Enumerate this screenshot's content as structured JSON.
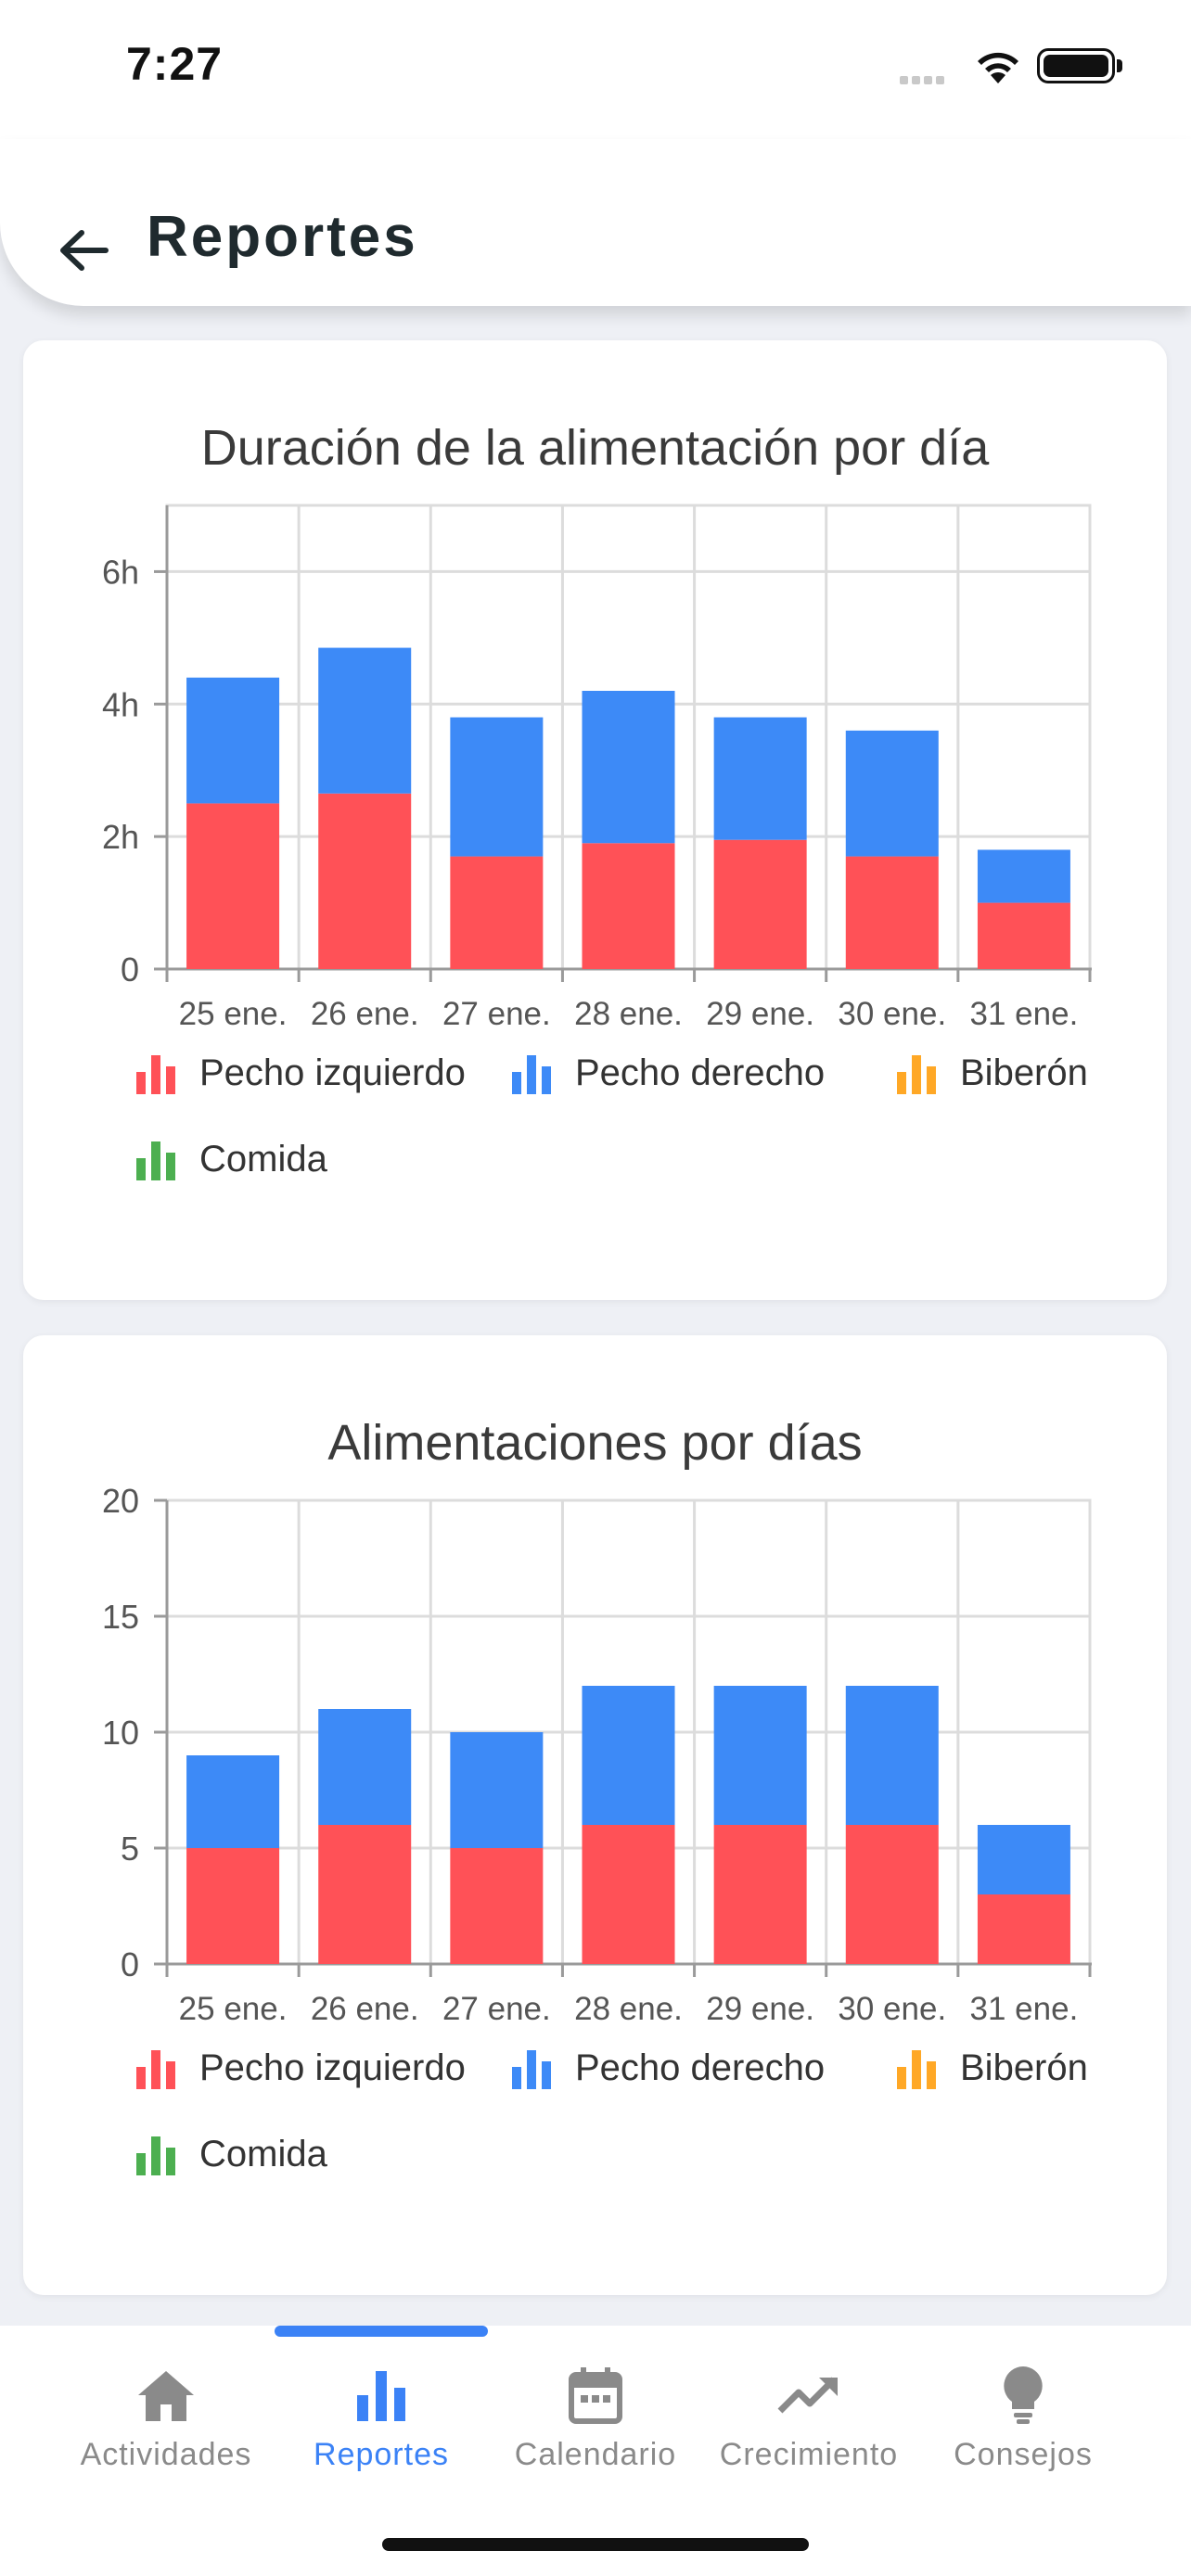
{
  "status_bar": {
    "time": "7:27"
  },
  "header": {
    "title": "Reportes",
    "back_icon": "arrow-left-icon"
  },
  "colors": {
    "pecho_izquierdo": "#ff5157",
    "pecho_derecho": "#3d8af7",
    "biberon": "#ffa826",
    "comida": "#4caf50",
    "accent": "#3b82f6",
    "inactive": "#8a8a8a"
  },
  "chart_data": [
    {
      "type": "bar",
      "stacked": true,
      "title": "Duración de la alimentación por día",
      "categories": [
        "25 ene.",
        "26 ene.",
        "27 ene.",
        "28 ene.",
        "29 ene.",
        "30 ene.",
        "31 ene."
      ],
      "series": [
        {
          "name": "Pecho izquierdo",
          "values": [
            2.5,
            2.65,
            1.7,
            1.9,
            1.95,
            1.7,
            1.0
          ]
        },
        {
          "name": "Pecho derecho",
          "values": [
            1.9,
            2.2,
            2.1,
            2.3,
            1.85,
            1.9,
            0.8
          ]
        },
        {
          "name": "Biberón",
          "values": [
            0,
            0,
            0,
            0,
            0,
            0,
            0
          ]
        },
        {
          "name": "Comida",
          "values": [
            0,
            0,
            0,
            0,
            0,
            0,
            0
          ]
        }
      ],
      "ylim": [
        0,
        7
      ],
      "yticks": [
        0,
        2,
        4,
        6
      ],
      "ytick_labels": [
        "0",
        "2h",
        "4h",
        "6h"
      ],
      "grid": true,
      "legend_position": "bottom"
    },
    {
      "type": "bar",
      "stacked": true,
      "title": "Alimentaciones por días",
      "categories": [
        "25 ene.",
        "26 ene.",
        "27 ene.",
        "28 ene.",
        "29 ene.",
        "30 ene.",
        "31 ene."
      ],
      "series": [
        {
          "name": "Pecho izquierdo",
          "values": [
            5,
            6,
            5,
            6,
            6,
            6,
            3
          ]
        },
        {
          "name": "Pecho derecho",
          "values": [
            4,
            5,
            5,
            6,
            6,
            6,
            3
          ]
        },
        {
          "name": "Biberón",
          "values": [
            0,
            0,
            0,
            0,
            0,
            0,
            0
          ]
        },
        {
          "name": "Comida",
          "values": [
            0,
            0,
            0,
            0,
            0,
            0,
            0
          ]
        }
      ],
      "ylim": [
        0,
        20
      ],
      "yticks": [
        0,
        5,
        10,
        15,
        20
      ],
      "ytick_labels": [
        "0",
        "5",
        "10",
        "15",
        "20"
      ],
      "grid": true,
      "legend_position": "bottom"
    }
  ],
  "nav": {
    "items": [
      {
        "label": "Actividades",
        "icon": "home-icon",
        "active": false
      },
      {
        "label": "Reportes",
        "icon": "bar-chart-icon",
        "active": true
      },
      {
        "label": "Calendario",
        "icon": "calendar-icon",
        "active": false
      },
      {
        "label": "Crecimiento",
        "icon": "trending-up-icon",
        "active": false
      },
      {
        "label": "Consejos",
        "icon": "lightbulb-icon",
        "active": false
      }
    ]
  }
}
